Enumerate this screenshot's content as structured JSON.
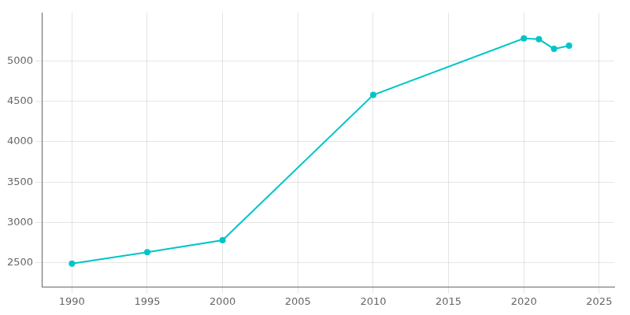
{
  "chart_data": {
    "type": "line",
    "x": [
      1990,
      1995,
      2000,
      2010,
      2020,
      2021,
      2022,
      2023
    ],
    "values": [
      2490,
      2630,
      2780,
      4580,
      5280,
      5270,
      5150,
      5190
    ],
    "color": "#00C5C8",
    "marker": "circle",
    "xlim": [
      1988,
      2026
    ],
    "ylim": [
      2200,
      5600
    ],
    "xticks": [
      1990,
      1995,
      2000,
      2005,
      2010,
      2015,
      2020,
      2025
    ],
    "yticks": [
      2500,
      3000,
      3500,
      4000,
      4500,
      5000
    ],
    "grid": true
  }
}
